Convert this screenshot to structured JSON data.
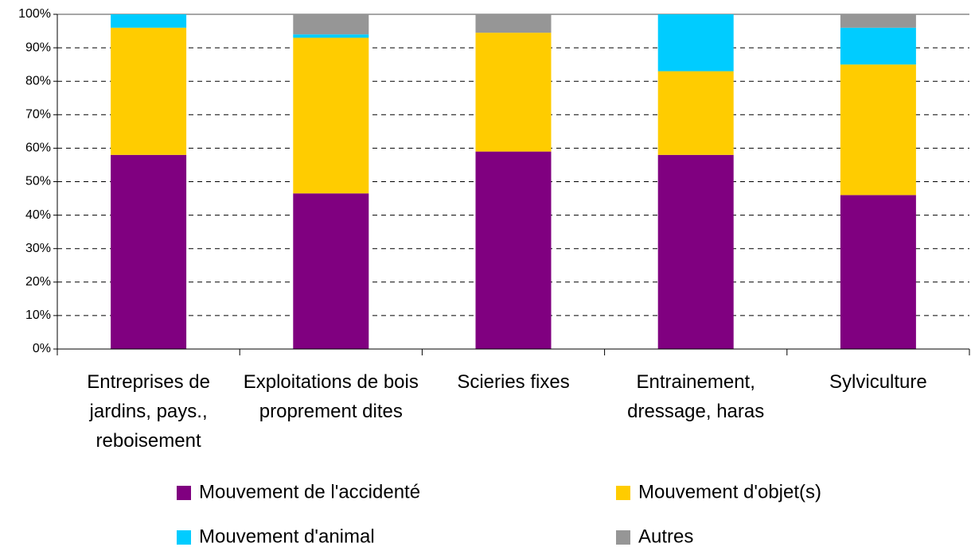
{
  "chart_data": {
    "type": "stacked_bar",
    "categories": [
      "Entreprises de jardins, pays., reboisement",
      "Exploitations de bois proprement dites",
      "Scieries fixes",
      "Entrainement, dressage, haras",
      "Sylviculture"
    ],
    "series": [
      {
        "name": "Mouvement de l'accidenté",
        "color": "#800080",
        "values": [
          58,
          46.5,
          59,
          58,
          46
        ]
      },
      {
        "name": "Mouvement d'objet(s)",
        "color": "#ffcc00",
        "values": [
          38,
          46.5,
          35.5,
          25,
          39
        ]
      },
      {
        "name": "Mouvement d'animal",
        "color": "#00ccff",
        "values": [
          4,
          1,
          0,
          17,
          11
        ]
      },
      {
        "name": "Autres",
        "color": "#969696",
        "values": [
          0,
          6,
          5.5,
          0,
          4
        ]
      }
    ],
    "ylim": [
      0,
      100
    ],
    "yticks": [
      {
        "value": 0,
        "label": "0%"
      },
      {
        "value": 10,
        "label": "10%"
      },
      {
        "value": 20,
        "label": "20%"
      },
      {
        "value": 30,
        "label": "30%"
      },
      {
        "value": 40,
        "label": "40%"
      },
      {
        "value": 50,
        "label": "50%"
      },
      {
        "value": 60,
        "label": "60%"
      },
      {
        "value": 70,
        "label": "70%"
      },
      {
        "value": 80,
        "label": "80%"
      },
      {
        "value": 90,
        "label": "90%"
      },
      {
        "value": 100,
        "label": "100%"
      }
    ],
    "grid": true
  }
}
